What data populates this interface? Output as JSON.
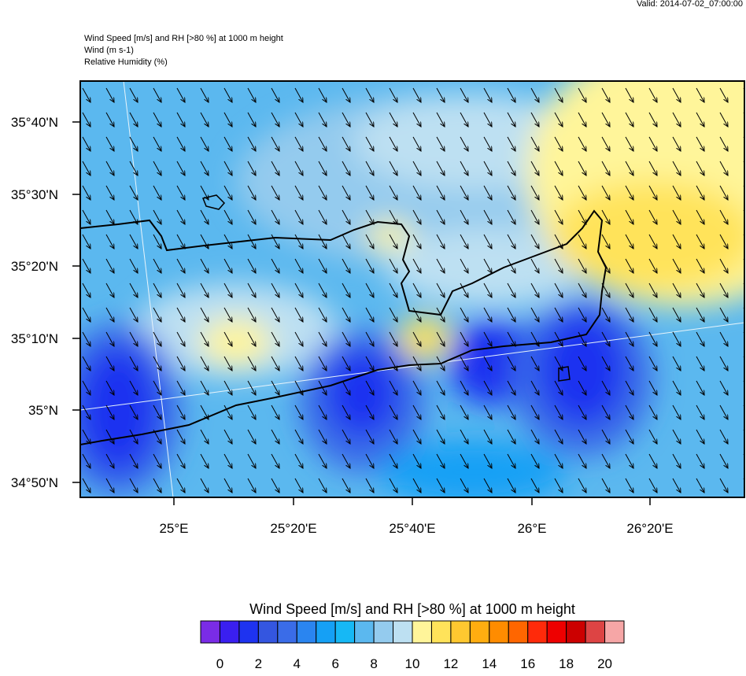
{
  "header": {
    "valid": "Valid: 2014-07-02_07:00:00",
    "lines": [
      "Wind Speed [m/s] and RH [>80 %] at 1000 m height",
      "Wind   (m s-1)",
      "Relative Humidity   (%)"
    ]
  },
  "map": {
    "lat_labels": [
      "35°40'N",
      "35°30'N",
      "35°20'N",
      "35°10'N",
      "35°N",
      "34°50'N"
    ],
    "lon_labels": [
      "25°E",
      "25°20'E",
      "25°40'E",
      "26°E",
      "26°20'E"
    ]
  },
  "colorbar": {
    "title": "Wind Speed [m/s] and RH [>80 %] at 1000 m height",
    "colors": [
      "#7a2ce6",
      "#3a1ff0",
      "#1e33f0",
      "#3456e0",
      "#3a6ce8",
      "#2a85f0",
      "#15a0f5",
      "#16b8f5",
      "#5bb8ef",
      "#94cbee",
      "#bde0f2",
      "#fff59a",
      "#ffe35a",
      "#ffc830",
      "#ffad10",
      "#ff8c00",
      "#ff6600",
      "#ff2a0a",
      "#ee0000",
      "#cc0000",
      "#dd4444",
      "#f6a6a6"
    ],
    "labels": [
      0,
      2,
      4,
      6,
      8,
      10,
      12,
      14,
      16,
      18,
      20
    ]
  }
}
